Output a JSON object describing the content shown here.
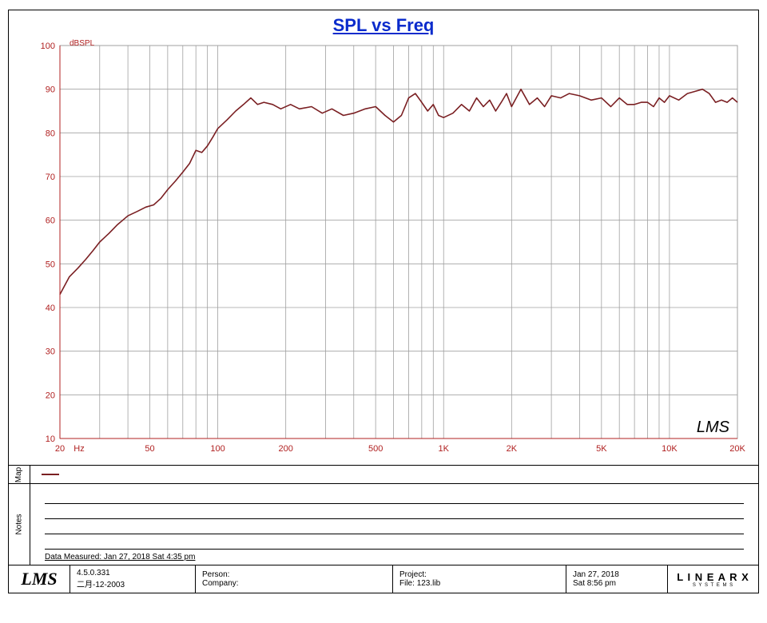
{
  "title": "SPL vs Freq",
  "title_color": "#0a2bcc",
  "chart": {
    "type": "line-logx",
    "y_unit_label": "dBSPL",
    "x_unit_label": "Hz",
    "xlim": [
      20,
      20000
    ],
    "ylim": [
      10,
      100
    ],
    "ytick_step": 10,
    "decades": [
      {
        "start": 20,
        "ticks": [
          20,
          30,
          40,
          50,
          60,
          70,
          80,
          90
        ]
      },
      {
        "start": 100,
        "ticks": [
          100,
          200,
          300,
          400,
          500,
          600,
          700,
          800,
          900
        ]
      },
      {
        "start": 1000,
        "ticks": [
          1000,
          2000,
          3000,
          4000,
          5000,
          6000,
          7000,
          8000,
          9000
        ]
      },
      {
        "start": 10000,
        "ticks": [
          10000,
          20000
        ]
      }
    ],
    "x_labels": [
      {
        "v": 20,
        "t": "20"
      },
      {
        "v": 50,
        "t": "50"
      },
      {
        "v": 100,
        "t": "100"
      },
      {
        "v": 200,
        "t": "200"
      },
      {
        "v": 500,
        "t": "500"
      },
      {
        "v": 1000,
        "t": "1K"
      },
      {
        "v": 2000,
        "t": "2K"
      },
      {
        "v": 5000,
        "t": "5K"
      },
      {
        "v": 10000,
        "t": "10K"
      },
      {
        "v": 20000,
        "t": "20K"
      }
    ],
    "y_labels": [
      10,
      20,
      30,
      40,
      50,
      60,
      70,
      80,
      90,
      100
    ],
    "grid_color": "#a0a0a0",
    "axis_color": "#b02020",
    "axis_label_color": "#b02020",
    "line_color": "#7a1f22",
    "line_width": 1.6,
    "background": "#ffffff",
    "watermark": "LMS",
    "series": [
      [
        20,
        43
      ],
      [
        22,
        47
      ],
      [
        24,
        49
      ],
      [
        26,
        51
      ],
      [
        28,
        53
      ],
      [
        30,
        55
      ],
      [
        33,
        57
      ],
      [
        36,
        59
      ],
      [
        40,
        61
      ],
      [
        44,
        62
      ],
      [
        48,
        63
      ],
      [
        52,
        63.5
      ],
      [
        56,
        65
      ],
      [
        60,
        67
      ],
      [
        65,
        69
      ],
      [
        70,
        71
      ],
      [
        75,
        73
      ],
      [
        80,
        76
      ],
      [
        85,
        75.5
      ],
      [
        90,
        77
      ],
      [
        95,
        79
      ],
      [
        100,
        81
      ],
      [
        110,
        83
      ],
      [
        120,
        85
      ],
      [
        130,
        86.5
      ],
      [
        140,
        88
      ],
      [
        150,
        86.5
      ],
      [
        160,
        87
      ],
      [
        175,
        86.5
      ],
      [
        190,
        85.5
      ],
      [
        210,
        86.5
      ],
      [
        230,
        85.5
      ],
      [
        260,
        86
      ],
      [
        290,
        84.5
      ],
      [
        320,
        85.5
      ],
      [
        360,
        84
      ],
      [
        400,
        84.5
      ],
      [
        450,
        85.5
      ],
      [
        500,
        86
      ],
      [
        550,
        84
      ],
      [
        600,
        82.5
      ],
      [
        650,
        84
      ],
      [
        700,
        88
      ],
      [
        750,
        89
      ],
      [
        800,
        87
      ],
      [
        850,
        85
      ],
      [
        900,
        86.5
      ],
      [
        950,
        84
      ],
      [
        1000,
        83.5
      ],
      [
        1100,
        84.5
      ],
      [
        1200,
        86.5
      ],
      [
        1300,
        85
      ],
      [
        1400,
        88
      ],
      [
        1500,
        86
      ],
      [
        1600,
        87.5
      ],
      [
        1700,
        85
      ],
      [
        1800,
        87
      ],
      [
        1900,
        89
      ],
      [
        2000,
        86
      ],
      [
        2200,
        90
      ],
      [
        2400,
        86.5
      ],
      [
        2600,
        88
      ],
      [
        2800,
        86
      ],
      [
        3000,
        88.5
      ],
      [
        3300,
        88
      ],
      [
        3600,
        89
      ],
      [
        4000,
        88.5
      ],
      [
        4500,
        87.5
      ],
      [
        5000,
        88
      ],
      [
        5500,
        86
      ],
      [
        6000,
        88
      ],
      [
        6500,
        86.5
      ],
      [
        7000,
        86.5
      ],
      [
        7500,
        87
      ],
      [
        8000,
        87
      ],
      [
        8500,
        86
      ],
      [
        9000,
        88
      ],
      [
        9500,
        87
      ],
      [
        10000,
        88.5
      ],
      [
        11000,
        87.5
      ],
      [
        12000,
        89
      ],
      [
        13000,
        89.5
      ],
      [
        14000,
        90
      ],
      [
        15000,
        89
      ],
      [
        16000,
        87
      ],
      [
        17000,
        87.5
      ],
      [
        18000,
        87
      ],
      [
        19000,
        88
      ],
      [
        20000,
        87
      ]
    ]
  },
  "legend": {
    "label": "Map"
  },
  "notes": {
    "label": "Notes",
    "lines": 4,
    "meta": "Data Measured: Jan 27, 2018  Sat  4:35 pm"
  },
  "footer": {
    "lms": "LMS",
    "version": "4.5.0.331",
    "version_date": "二月-12-2003",
    "person_label": "Person:",
    "company_label": "Company:",
    "project_label": "Project:",
    "file_label": "File:",
    "file_value": "123.lib",
    "date": "Jan 27, 2018",
    "time": "Sat  8:56 pm",
    "brand_top": "L I N E A R X",
    "brand_bottom": "S   Y   S   T   E   M   S"
  }
}
